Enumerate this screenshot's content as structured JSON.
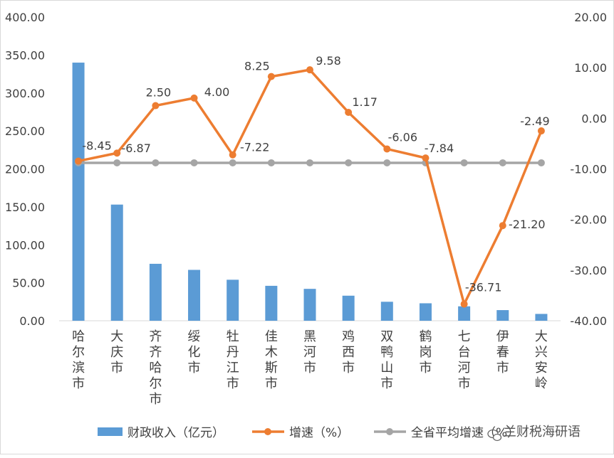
{
  "chart_data": {
    "type": "bar+line",
    "title": "",
    "categories": [
      "哈尔滨市",
      "大庆市",
      "齐齐哈尔市",
      "绥化市",
      "牡丹江市",
      "佳木斯市",
      "黑河市",
      "鸡西市",
      "双鸭山市",
      "鹤岗市",
      "七台河市",
      "伊春市",
      "大兴安岭"
    ],
    "left_axis": {
      "min": 0,
      "max": 400,
      "step": 50,
      "tick_labels": [
        "0.00",
        "50.00",
        "100.00",
        "150.00",
        "200.00",
        "250.00",
        "300.00",
        "350.00",
        "400.00"
      ]
    },
    "right_axis": {
      "min": -40,
      "max": 20,
      "step": 10,
      "tick_labels": [
        "-40.00",
        "-30.00",
        "-20.00",
        "-10.00",
        "0.00",
        "10.00",
        "20.00"
      ]
    },
    "series": [
      {
        "name": "财政收入（亿元）",
        "type": "bar",
        "axis": "left",
        "color": "#5b9bd5",
        "values": [
          340,
          153,
          75,
          67,
          54,
          46,
          42,
          33,
          25,
          23,
          19,
          14,
          9
        ]
      },
      {
        "name": "增速（%）",
        "type": "line",
        "axis": "right",
        "color": "#ed7d31",
        "values": [
          -8.45,
          -6.87,
          2.5,
          4.0,
          -7.22,
          8.25,
          9.58,
          1.17,
          -6.06,
          -7.84,
          -36.71,
          -21.2,
          -2.49
        ],
        "labels": [
          "-8.45",
          "-6.87",
          "2.50",
          "4.00",
          "-7.22",
          "8.25",
          "9.58",
          "1.17",
          "-6.06",
          "-7.84",
          "-36.71",
          "-21.20",
          "-2.49"
        ]
      },
      {
        "name": "全省平均增速（%）",
        "type": "line",
        "axis": "right",
        "color": "#a5a5a5",
        "values": [
          -8.8,
          -8.8,
          -8.8,
          -8.8,
          -8.8,
          -8.8,
          -8.8,
          -8.8,
          -8.8,
          -8.8,
          -8.8,
          -8.8,
          -8.8
        ]
      }
    ],
    "legend": {
      "position": "bottom",
      "items": [
        "财政收入（亿元）",
        "增速（%）",
        "全省平均增速（%）"
      ]
    },
    "grid": false
  },
  "watermark": {
    "text": "兰财税海研语",
    "icon": "wechat-icon"
  }
}
